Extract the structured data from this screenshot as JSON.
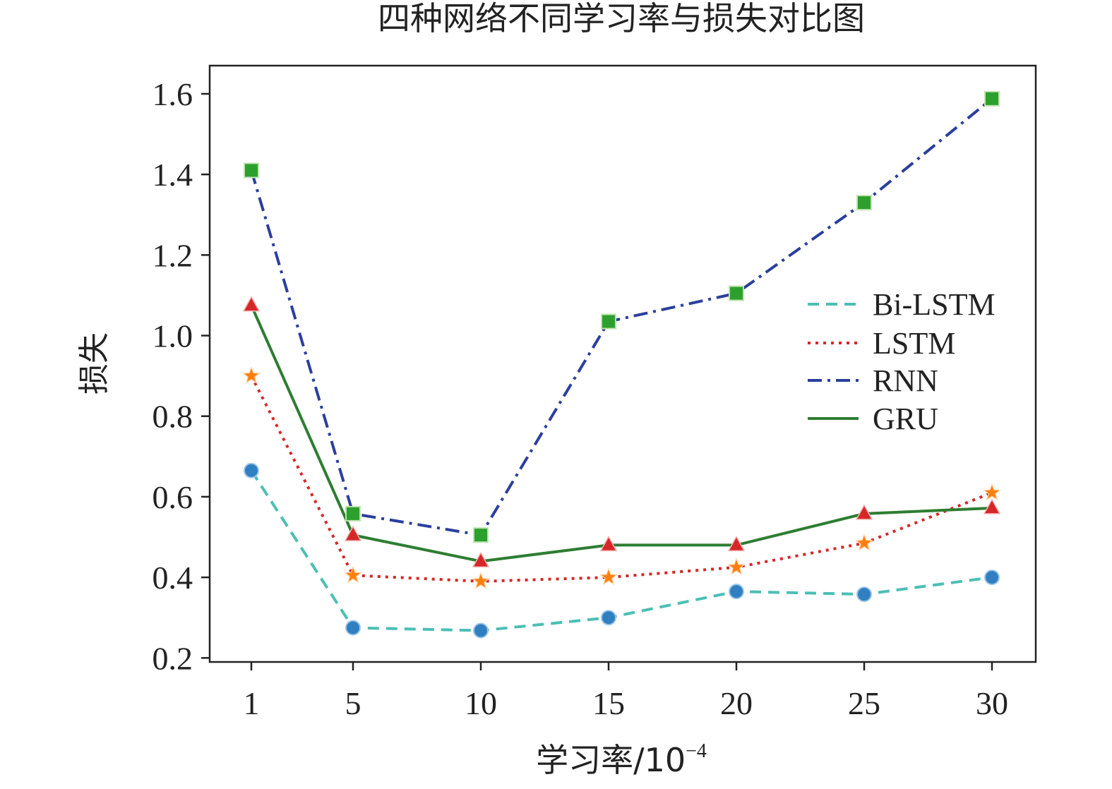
{
  "chart_data": {
    "type": "line",
    "title": "四种网络不同学习率与损失对比图",
    "xlabel": "学习率/10",
    "xlabel_exponent": "−4",
    "ylabel": "损失",
    "categories": [
      "1",
      "5",
      "10",
      "15",
      "20",
      "25",
      "30"
    ],
    "x": [
      1,
      5,
      10,
      15,
      20,
      25,
      30
    ],
    "ylim": [
      0.19,
      1.67
    ],
    "yticks": [
      0.2,
      0.4,
      0.6,
      0.8,
      1.0,
      1.2,
      1.4,
      1.6
    ],
    "ytick_labels": [
      "0.2",
      "0.4",
      "0.6",
      "0.8",
      "1.0",
      "1.2",
      "1.4",
      "1.6"
    ],
    "grid": false,
    "legend_position": "right",
    "series": [
      {
        "name": "Bi-LSTM",
        "values": [
          0.665,
          0.275,
          0.268,
          0.3,
          0.365,
          0.358,
          0.4
        ],
        "line_color": "#4bbfb4",
        "line_style": "dashed",
        "marker": "circle",
        "marker_color": "#2f7fc1"
      },
      {
        "name": "LSTM",
        "values": [
          0.9,
          0.405,
          0.39,
          0.4,
          0.425,
          0.485,
          0.61
        ],
        "line_color": "#d62728",
        "line_style": "dotted",
        "marker": "star",
        "marker_color": "#ff7f0e"
      },
      {
        "name": "RNN",
        "values": [
          1.41,
          0.558,
          0.505,
          1.035,
          1.105,
          1.33,
          1.588
        ],
        "line_color": "#2a3f9d",
        "line_style": "dashdot",
        "marker": "square",
        "marker_color": "#2ca02c"
      },
      {
        "name": "GRU",
        "values": [
          1.075,
          0.505,
          0.44,
          0.48,
          0.48,
          0.558,
          0.572
        ],
        "line_color": "#2e7d32",
        "line_style": "solid",
        "marker": "triangle",
        "marker_color": "#d62728"
      }
    ]
  }
}
